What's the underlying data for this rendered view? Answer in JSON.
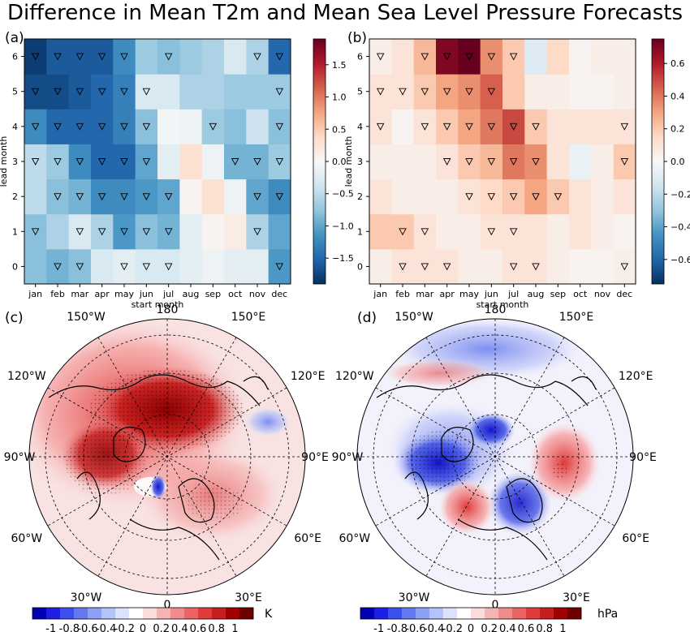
{
  "title": "Difference in Mean T2m and Mean Sea Level Pressure Forecasts",
  "chart_data": [
    {
      "type": "heatmap",
      "panel": "(a)",
      "xlabel": "start month",
      "ylabel": "lead month",
      "x": [
        "jan",
        "feb",
        "mar",
        "apr",
        "may",
        "jun",
        "jul",
        "aug",
        "sep",
        "oct",
        "nov",
        "dec"
      ],
      "y": [
        0,
        1,
        2,
        3,
        4,
        5,
        6
      ],
      "clim": [
        -1.9,
        1.9
      ],
      "colorbar_ticks": [
        -1.5,
        -1.0,
        -0.5,
        0.0,
        0.5,
        1.0,
        1.5
      ],
      "colorbar_labels": [
        "−1.5",
        "−1.0",
        "−0.5",
        "0.0",
        "0.5",
        "1.0",
        "1.5"
      ],
      "values": [
        [
          -0.8,
          -0.9,
          -0.8,
          -0.3,
          -0.2,
          -0.3,
          -0.3,
          -0.2,
          -0.1,
          -0.2,
          -0.2,
          -1.1
        ],
        [
          -0.8,
          -0.6,
          -0.3,
          -0.6,
          -1.1,
          -0.8,
          -0.9,
          -0.2,
          0.05,
          0.15,
          -0.6,
          -1.0
        ],
        [
          -0.5,
          -0.8,
          -0.9,
          -1.2,
          -1.2,
          -1.1,
          -1.0,
          0.05,
          0.3,
          -0.1,
          -1.0,
          -1.2
        ],
        [
          -0.5,
          -0.7,
          -1.2,
          -1.5,
          -1.5,
          -1.0,
          -0.2,
          0.3,
          -0.1,
          -0.9,
          -0.9,
          -0.7
        ],
        [
          -1.2,
          -1.5,
          -1.5,
          -1.5,
          -1.3,
          -0.8,
          -0.05,
          -0.1,
          -0.7,
          -0.8,
          -0.4,
          -0.8
        ],
        [
          -1.7,
          -1.7,
          -1.6,
          -1.5,
          -1.3,
          -0.3,
          -0.3,
          -0.6,
          -0.6,
          -0.7,
          -0.7,
          -0.7
        ],
        [
          -1.8,
          -1.6,
          -1.6,
          -1.6,
          -1.2,
          -0.7,
          -0.8,
          -0.7,
          -0.6,
          -0.3,
          -0.6,
          -1.5
        ]
      ],
      "significant": [
        [
          0,
          1,
          1,
          0,
          1,
          1,
          1,
          0,
          0,
          0,
          0,
          1
        ],
        [
          1,
          0,
          1,
          1,
          1,
          1,
          1,
          0,
          0,
          0,
          1,
          0
        ],
        [
          0,
          1,
          1,
          1,
          1,
          1,
          1,
          0,
          0,
          0,
          1,
          1
        ],
        [
          1,
          1,
          1,
          1,
          1,
          1,
          0,
          0,
          0,
          1,
          1,
          1
        ],
        [
          1,
          1,
          1,
          1,
          1,
          1,
          0,
          0,
          1,
          0,
          0,
          1
        ],
        [
          1,
          1,
          1,
          1,
          1,
          1,
          0,
          0,
          0,
          0,
          0,
          1
        ],
        [
          1,
          1,
          1,
          1,
          1,
          0,
          1,
          0,
          0,
          0,
          1,
          1
        ]
      ]
    },
    {
      "type": "heatmap",
      "panel": "(b)",
      "xlabel": "start month",
      "ylabel": "lead month",
      "x": [
        "jan",
        "feb",
        "mar",
        "apr",
        "may",
        "jun",
        "jul",
        "aug",
        "sep",
        "oct",
        "nov",
        "dec"
      ],
      "y": [
        0,
        1,
        2,
        3,
        4,
        5,
        6
      ],
      "clim": [
        -0.75,
        0.75
      ],
      "colorbar_ticks": [
        -0.6,
        -0.4,
        -0.2,
        0.0,
        0.2,
        0.4,
        0.6
      ],
      "colorbar_labels": [
        "−0.6",
        "−0.4",
        "−0.2",
        "0.0",
        "0.2",
        "0.4",
        "0.6"
      ],
      "values": [
        [
          0.05,
          0.1,
          0.1,
          0.1,
          0.05,
          0.05,
          0.1,
          0.1,
          0.05,
          0.02,
          0.02,
          0.05
        ],
        [
          0.2,
          0.2,
          0.1,
          0.05,
          0.05,
          0.1,
          0.1,
          0.1,
          0.05,
          0.1,
          0.05,
          0.02
        ],
        [
          0.1,
          0.05,
          0.05,
          0.05,
          0.1,
          0.15,
          0.2,
          0.3,
          0.2,
          0.1,
          0.05,
          0.1
        ],
        [
          0.05,
          0.05,
          0.05,
          0.1,
          0.2,
          0.25,
          0.4,
          0.35,
          0.1,
          -0.05,
          0.05,
          0.2
        ],
        [
          0.1,
          0.02,
          0.1,
          0.2,
          0.3,
          0.4,
          0.5,
          0.2,
          0.1,
          0.1,
          0.1,
          0.1
        ],
        [
          0.1,
          0.1,
          0.2,
          0.3,
          0.35,
          0.45,
          0.2,
          0.05,
          0.05,
          0.02,
          0.02,
          0.05
        ],
        [
          0.05,
          0.1,
          0.25,
          0.7,
          0.75,
          0.35,
          0.2,
          -0.1,
          0.15,
          0.02,
          0.05,
          0.05
        ]
      ],
      "significant": [
        [
          0,
          1,
          1,
          1,
          0,
          0,
          1,
          1,
          0,
          0,
          0,
          1
        ],
        [
          0,
          1,
          1,
          0,
          0,
          1,
          1,
          0,
          0,
          0,
          0,
          0
        ],
        [
          0,
          0,
          0,
          0,
          1,
          1,
          1,
          1,
          1,
          0,
          0,
          0
        ],
        [
          0,
          0,
          0,
          1,
          1,
          1,
          1,
          1,
          0,
          0,
          0,
          1
        ],
        [
          1,
          0,
          1,
          1,
          1,
          1,
          1,
          1,
          0,
          0,
          0,
          1
        ],
        [
          1,
          1,
          1,
          1,
          1,
          1,
          0,
          0,
          0,
          0,
          0,
          0
        ],
        [
          1,
          0,
          1,
          1,
          1,
          1,
          1,
          0,
          0,
          0,
          0,
          0
        ]
      ]
    },
    {
      "type": "map",
      "panel": "(c)",
      "projection": "north polar stereographic",
      "longitude_labels": [
        "180",
        "150°E",
        "120°E",
        "90°E",
        "60°E",
        "30°E",
        "0",
        "30°W",
        "60°W",
        "90°W",
        "120°W",
        "150°W"
      ],
      "colorbar_ticks": [
        -1,
        -0.8,
        -0.6,
        -0.4,
        -0.2,
        0,
        0.2,
        0.4,
        0.6,
        0.8,
        1
      ],
      "colorbar_labels": [
        "-1",
        "-0.8",
        "-0.6",
        "-0.4",
        "-0.2",
        "0",
        "0.2",
        "0.4",
        "0.6",
        "0.8",
        "1"
      ],
      "units": "K"
    },
    {
      "type": "map",
      "panel": "(d)",
      "projection": "north polar stereographic",
      "longitude_labels": [
        "180",
        "150°E",
        "120°E",
        "90°E",
        "60°E",
        "30°E",
        "0",
        "30°W",
        "60°W",
        "90°W",
        "120°W",
        "150°W"
      ],
      "colorbar_ticks": [
        -1,
        -0.8,
        -0.6,
        -0.4,
        -0.2,
        0,
        0.2,
        0.4,
        0.6,
        0.8,
        1
      ],
      "colorbar_labels": [
        "-1",
        "-0.8",
        "-0.6",
        "-0.4",
        "-0.2",
        "0",
        "0.2",
        "0.4",
        "0.6",
        "0.8",
        "1"
      ],
      "units": "hPa"
    }
  ],
  "colors": {
    "heatmap_low": "#053061",
    "heatmap_mid": "#f7f7f7",
    "heatmap_high": "#67001f",
    "map_low": "#0000b4",
    "map_high": "#6e0000"
  }
}
